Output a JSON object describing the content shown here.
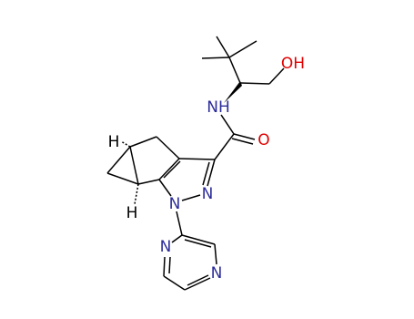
{
  "atom_labels": [
    "OH",
    "NH",
    "O",
    "N",
    "N",
    "N",
    "N",
    "H",
    "H"
  ]
}
